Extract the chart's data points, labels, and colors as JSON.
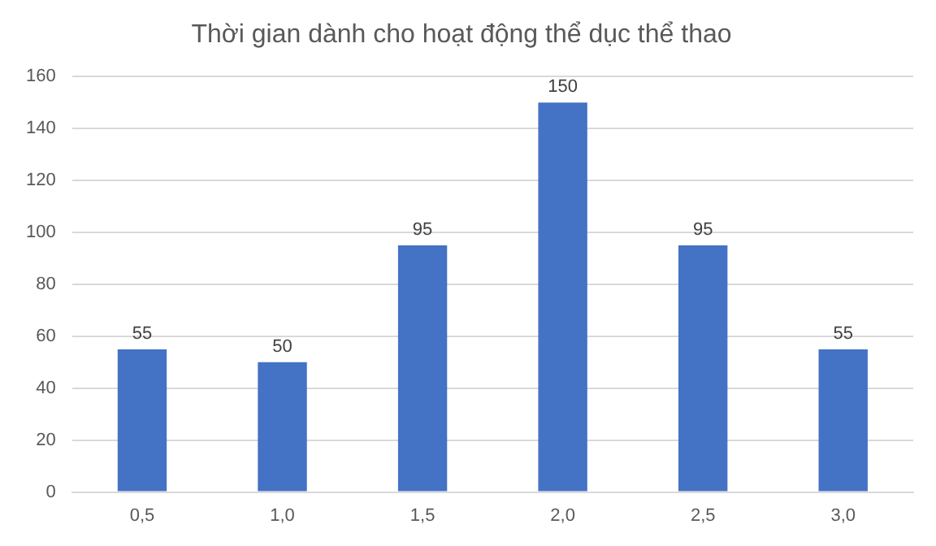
{
  "chart_data": {
    "type": "bar",
    "title": "Thời gian dành cho hoạt động thể dục thể thao",
    "categories": [
      "0,5",
      "1,0",
      "1,5",
      "2,0",
      "2,5",
      "3,0"
    ],
    "values": [
      55,
      50,
      95,
      150,
      95,
      55
    ],
    "color": "#4472c4",
    "ylim": [
      0,
      160
    ],
    "yticks": [
      0,
      20,
      40,
      60,
      80,
      100,
      120,
      140,
      160
    ],
    "grid": "y",
    "data_labels": true,
    "legend": false
  }
}
